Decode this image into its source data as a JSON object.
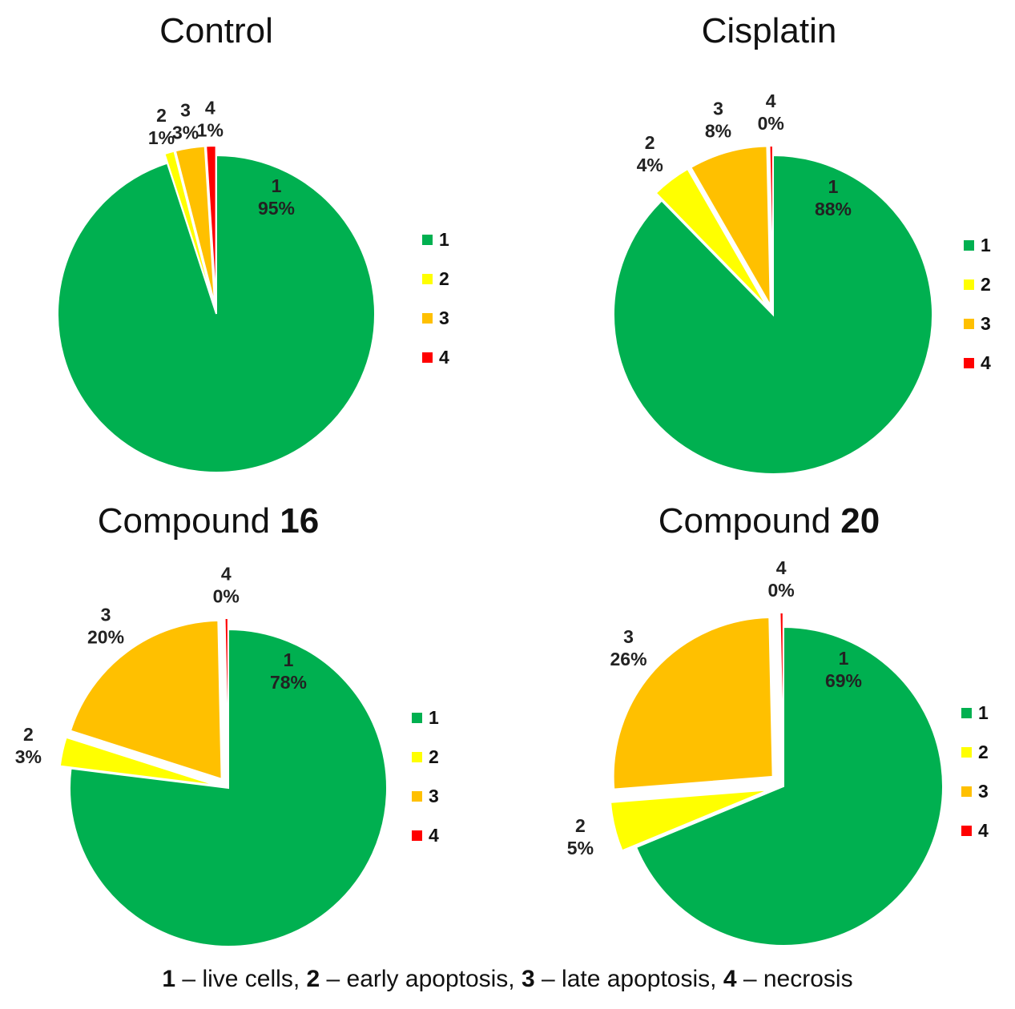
{
  "colors": {
    "1": "#00b050",
    "2": "#ffff00",
    "3": "#ffc000",
    "4": "#ff0000"
  },
  "chart_data": [
    {
      "type": "pie",
      "title": "Control",
      "title_plain": "Control",
      "title_bold": "",
      "categories": [
        "1",
        "2",
        "3",
        "4"
      ],
      "values": [
        95,
        1,
        3,
        1
      ],
      "value_labels": [
        "95%",
        "1%",
        "3%",
        "1%"
      ],
      "legend": [
        "1",
        "2",
        "3",
        "4"
      ],
      "legend_position": "right",
      "exploded": [
        "2",
        "3",
        "4"
      ]
    },
    {
      "type": "pie",
      "title": "Cisplatin",
      "title_plain": "Cisplatin",
      "title_bold": "",
      "categories": [
        "1",
        "2",
        "3",
        "4"
      ],
      "values": [
        88,
        4,
        8,
        0
      ],
      "value_labels": [
        "88%",
        "4%",
        "8%",
        "0%"
      ],
      "legend": [
        "1",
        "2",
        "3",
        "4"
      ],
      "legend_position": "right",
      "exploded": [
        "2",
        "3",
        "4"
      ]
    },
    {
      "type": "pie",
      "title": "Compound 16",
      "title_plain": "Compound ",
      "title_bold": "16",
      "categories": [
        "1",
        "2",
        "3",
        "4"
      ],
      "values": [
        78,
        3,
        20,
        0
      ],
      "value_labels": [
        "78%",
        "3%",
        "20%",
        "0%"
      ],
      "legend": [
        "1",
        "2",
        "3",
        "4"
      ],
      "legend_position": "right",
      "exploded": [
        "2",
        "3",
        "4"
      ]
    },
    {
      "type": "pie",
      "title": "Compound 20",
      "title_plain": "Compound ",
      "title_bold": "20",
      "categories": [
        "1",
        "2",
        "3",
        "4"
      ],
      "values": [
        69,
        5,
        26,
        0
      ],
      "value_labels": [
        "69%",
        "5%",
        "26%",
        "0%"
      ],
      "legend": [
        "1",
        "2",
        "3",
        "4"
      ],
      "legend_position": "right",
      "exploded": [
        "2",
        "3",
        "4"
      ]
    }
  ],
  "footer": [
    {
      "bold": "1",
      "text": " – live cells, "
    },
    {
      "bold": "2",
      "text": " – early apoptosis, "
    },
    {
      "bold": "3",
      "text": " – late apoptosis, "
    },
    {
      "bold": "4",
      "text": " – necrosis"
    }
  ]
}
